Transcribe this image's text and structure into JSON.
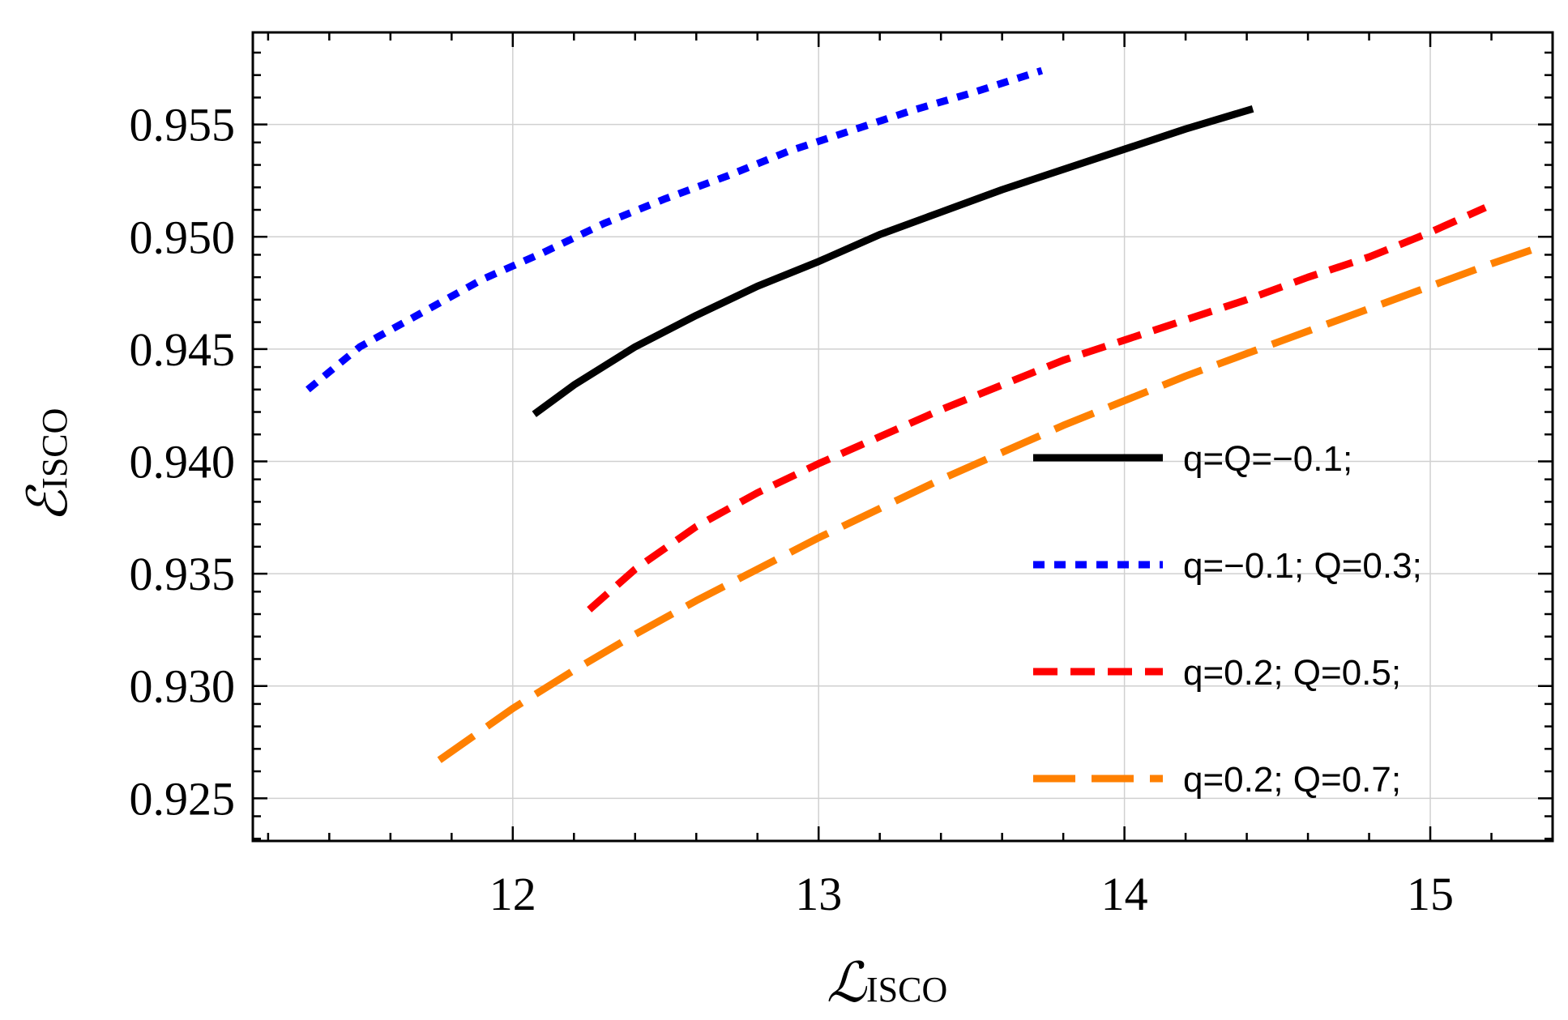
{
  "chart_data": {
    "type": "line",
    "xlabel": "ℒ",
    "xlabel_sub": "ISCO",
    "ylabel": "ℰ",
    "ylabel_sub": "ISCO",
    "xlim": [
      11.15,
      15.4
    ],
    "ylim": [
      0.9231,
      0.9591
    ],
    "xticks": [
      12,
      13,
      14,
      15
    ],
    "xtick_labels": [
      "12",
      "13",
      "14",
      "15"
    ],
    "yticks": [
      0.925,
      0.93,
      0.935,
      0.94,
      0.945,
      0.95,
      0.955
    ],
    "ytick_labels": [
      "0.925",
      "0.930",
      "0.935",
      "0.940",
      "0.945",
      "0.950",
      "0.955"
    ],
    "grid": true,
    "legend_position": "right",
    "series": [
      {
        "name": "q=Q=−0.1;",
        "color": "#000000",
        "style": "solid",
        "x": [
          12.07,
          12.2,
          12.4,
          12.6,
          12.8,
          13.0,
          13.2,
          13.4,
          13.6,
          13.8,
          14.0,
          14.2,
          14.42
        ],
        "y": [
          0.9421,
          0.9434,
          0.9451,
          0.9465,
          0.9478,
          0.9489,
          0.9501,
          0.9511,
          0.9521,
          0.953,
          0.9539,
          0.9548,
          0.9557
        ]
      },
      {
        "name": "q=−0.1; Q=0.3;",
        "color": "#0000ff",
        "style": "dotted",
        "x": [
          11.33,
          11.5,
          11.7,
          11.9,
          12.1,
          12.3,
          12.5,
          12.7,
          12.9,
          13.1,
          13.3,
          13.5,
          13.73
        ],
        "y": [
          0.9432,
          0.9451,
          0.9466,
          0.9481,
          0.9493,
          0.9506,
          0.9517,
          0.9527,
          0.9538,
          0.9547,
          0.9556,
          0.9564,
          0.9574
        ]
      },
      {
        "name": "q=0.2; Q=0.5;",
        "color": "#ff0000",
        "style": "dashed",
        "x": [
          12.25,
          12.4,
          12.6,
          12.8,
          13.0,
          13.2,
          13.4,
          13.6,
          13.8,
          14.0,
          14.2,
          14.4,
          14.6,
          14.8,
          15.0,
          15.18
        ],
        "y": [
          0.9334,
          0.9352,
          0.9371,
          0.9386,
          0.9399,
          0.9411,
          0.9423,
          0.9434,
          0.9445,
          0.9454,
          0.9463,
          0.9472,
          0.9482,
          0.9491,
          0.9502,
          0.9513
        ]
      },
      {
        "name": "q=0.2; Q=0.7;",
        "color": "#ff8000",
        "style": "longdashed",
        "x": [
          11.76,
          12.0,
          12.2,
          12.4,
          12.6,
          12.8,
          13.0,
          13.2,
          13.4,
          13.6,
          13.8,
          14.0,
          14.2,
          14.4,
          14.6,
          14.8,
          15.0,
          15.2,
          15.35
        ],
        "y": [
          0.9267,
          0.929,
          0.9307,
          0.9323,
          0.9338,
          0.9352,
          0.9366,
          0.9379,
          0.9392,
          0.9404,
          0.9416,
          0.9427,
          0.9438,
          0.9448,
          0.9458,
          0.9468,
          0.9478,
          0.9488,
          0.9495
        ]
      }
    ]
  }
}
